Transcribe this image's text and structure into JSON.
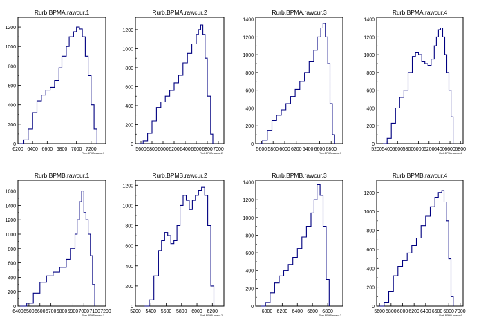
{
  "chart_data": [
    {
      "type": "histogram",
      "title": "Rurb.BPMA.rawcur.1",
      "xlabel": "Rurb.BPMA.rawcur.1",
      "xlim": [
        6200,
        7400
      ],
      "ylim": [
        0,
        1300
      ],
      "xticks": [
        6200,
        6400,
        6600,
        6800,
        7000,
        7200
      ],
      "yticks": [
        0,
        200,
        400,
        600,
        800,
        1000,
        1200
      ],
      "color": "#000080",
      "x": [
        6220,
        6280,
        6340,
        6400,
        6460,
        6520,
        6580,
        6640,
        6700,
        6760,
        6800,
        6860,
        6900,
        6960,
        7000,
        7040,
        7080,
        7120,
        7160,
        7200,
        7240,
        7280
      ],
      "y": [
        0,
        40,
        150,
        320,
        440,
        500,
        550,
        580,
        650,
        780,
        900,
        1000,
        1100,
        1150,
        1200,
        1180,
        1100,
        900,
        700,
        400,
        150,
        0
      ]
    },
    {
      "type": "histogram",
      "title": "Rurb.BPMA.rawcur.2",
      "xlabel": "Rurb.BPMA.rawcur.2",
      "xlim": [
        5500,
        7100
      ],
      "ylim": [
        0,
        1330
      ],
      "xticks": [
        5600,
        5800,
        6000,
        6200,
        6400,
        6600,
        6800,
        7000
      ],
      "yticks": [
        0,
        200,
        400,
        600,
        800,
        1000,
        1200
      ],
      "color": "#000080",
      "x": [
        5560,
        5640,
        5720,
        5800,
        5880,
        5960,
        6040,
        6120,
        6200,
        6280,
        6360,
        6440,
        6520,
        6600,
        6640,
        6680,
        6720,
        6760,
        6800,
        6860,
        6900
      ],
      "y": [
        0,
        30,
        110,
        240,
        380,
        440,
        500,
        560,
        640,
        720,
        850,
        950,
        1050,
        1150,
        1200,
        1250,
        1150,
        900,
        500,
        100,
        0
      ]
    },
    {
      "type": "histogram",
      "title": "Rurb.BPMA.rawcur.3",
      "xlabel": "Rurb.BPMA.rawcur.3",
      "xlim": [
        5500,
        7000
      ],
      "ylim": [
        0,
        1420
      ],
      "xticks": [
        5600,
        5800,
        6000,
        6200,
        6400,
        6600,
        6800
      ],
      "yticks": [
        0,
        200,
        400,
        600,
        800,
        1000,
        1200,
        1400
      ],
      "color": "#000080",
      "x": [
        5560,
        5620,
        5700,
        5780,
        5860,
        5940,
        6020,
        6100,
        6180,
        6260,
        6340,
        6420,
        6500,
        6560,
        6620,
        6660,
        6700,
        6740,
        6780,
        6820,
        6860
      ],
      "y": [
        0,
        40,
        150,
        260,
        320,
        380,
        450,
        530,
        610,
        700,
        800,
        920,
        1050,
        1200,
        1300,
        1350,
        1200,
        900,
        450,
        100,
        0
      ]
    },
    {
      "type": "histogram",
      "title": "Rurb.BPMA.rawcur.4",
      "xlabel": "Rurb.BPMA.rawcur.4",
      "xlim": [
        5200,
        6850
      ],
      "ylim": [
        0,
        1420
      ],
      "xticks": [
        5200,
        5400,
        5600,
        5800,
        6000,
        6200,
        6400,
        6600,
        6800
      ],
      "yticks": [
        0,
        200,
        400,
        600,
        800,
        1000,
        1200,
        1400
      ],
      "color": "#000080",
      "x": [
        5320,
        5400,
        5480,
        5560,
        5640,
        5720,
        5800,
        5880,
        5940,
        6000,
        6060,
        6120,
        6180,
        6240,
        6300,
        6340,
        6380,
        6420,
        6460,
        6500,
        6540,
        6580,
        6620,
        6660
      ],
      "y": [
        0,
        60,
        230,
        400,
        520,
        600,
        800,
        980,
        1020,
        1000,
        920,
        900,
        880,
        950,
        1100,
        1200,
        1280,
        1300,
        1200,
        1000,
        800,
        600,
        300,
        0
      ]
    },
    {
      "type": "histogram",
      "title": "Rurb.BPMB.rawcur.1",
      "xlabel": "Rurb.BPMB.rawcur.1",
      "xlim": [
        6400,
        7200
      ],
      "ylim": [
        0,
        1750
      ],
      "xticks": [
        6400,
        6500,
        6600,
        6700,
        6800,
        6900,
        7000,
        7100,
        7200
      ],
      "yticks": [
        0,
        200,
        400,
        600,
        800,
        1000,
        1200,
        1400,
        1600
      ],
      "color": "#000080",
      "x": [
        6420,
        6480,
        6540,
        6600,
        6660,
        6720,
        6780,
        6840,
        6880,
        6920,
        6940,
        6960,
        6980,
        7000,
        7020,
        7040,
        7060,
        7080,
        7100
      ],
      "y": [
        0,
        40,
        180,
        330,
        420,
        470,
        540,
        650,
        800,
        1000,
        1200,
        1450,
        1600,
        1300,
        1200,
        1000,
        700,
        300,
        0
      ]
    },
    {
      "type": "histogram",
      "title": "Rurb.BPMB.rawcur.2",
      "xlabel": "Rurb.BPMB.rawcur.2",
      "xlim": [
        5200,
        6350
      ],
      "ylim": [
        0,
        1250
      ],
      "xticks": [
        5200,
        5400,
        5600,
        5800,
        6000,
        6200
      ],
      "yticks": [
        0,
        200,
        400,
        600,
        800,
        1000,
        1200
      ],
      "color": "#000080",
      "x": [
        5320,
        5380,
        5440,
        5500,
        5540,
        5580,
        5620,
        5660,
        5700,
        5740,
        5780,
        5820,
        5860,
        5900,
        5940,
        5980,
        6020,
        6060,
        6100,
        6140,
        6180,
        6220
      ],
      "y": [
        0,
        60,
        300,
        550,
        650,
        730,
        700,
        620,
        650,
        800,
        1000,
        1100,
        1050,
        960,
        1050,
        1100,
        1150,
        1180,
        1100,
        800,
        200,
        0
      ]
    },
    {
      "type": "histogram",
      "title": "Rurb.BPMB.rawcur.3",
      "xlabel": "Rurb.BPMB.rawcur.3",
      "xlim": [
        5850,
        7000
      ],
      "ylim": [
        0,
        1420
      ],
      "xticks": [
        6000,
        6200,
        6400,
        6600,
        6800
      ],
      "yticks": [
        0,
        200,
        400,
        600,
        800,
        1000,
        1200,
        1400
      ],
      "color": "#000080",
      "x": [
        5920,
        5980,
        6040,
        6100,
        6160,
        6220,
        6280,
        6340,
        6400,
        6460,
        6520,
        6580,
        6620,
        6660,
        6700,
        6740,
        6780,
        6820
      ],
      "y": [
        0,
        40,
        150,
        260,
        340,
        400,
        470,
        550,
        650,
        780,
        900,
        1050,
        1200,
        1370,
        1250,
        900,
        300,
        0
      ]
    },
    {
      "type": "histogram",
      "title": "Rurb.BPMB.rawcur.4",
      "xlabel": "Rurb.BPMB.rawcur.4",
      "xlim": [
        5550,
        7050
      ],
      "ylim": [
        0,
        1330
      ],
      "xticks": [
        5600,
        5800,
        6000,
        6200,
        6400,
        6600,
        6800,
        7000
      ],
      "yticks": [
        0,
        200,
        400,
        600,
        800,
        1000,
        1200
      ],
      "color": "#000080",
      "x": [
        5600,
        5680,
        5760,
        5840,
        5920,
        6000,
        6080,
        6160,
        6240,
        6320,
        6400,
        6480,
        6560,
        6620,
        6680,
        6720,
        6760,
        6800,
        6840,
        6880
      ],
      "y": [
        0,
        40,
        150,
        320,
        420,
        480,
        560,
        640,
        720,
        850,
        950,
        1050,
        1150,
        1200,
        1220,
        1100,
        900,
        500,
        100,
        0
      ]
    }
  ]
}
